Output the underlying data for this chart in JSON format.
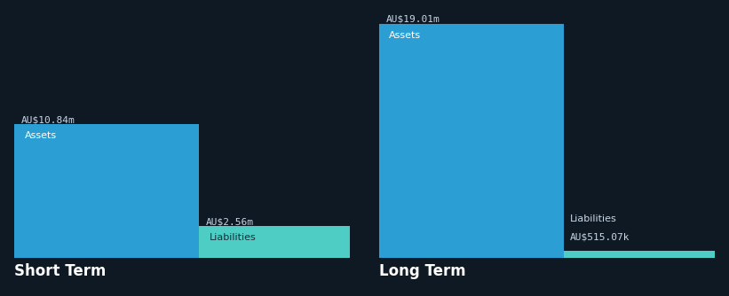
{
  "background_color": "#0f1923",
  "short_term": {
    "assets_value": 10.84,
    "assets_label": "AU$10.84m",
    "assets_color": "#2b9fd4",
    "liabilities_value": 2.56,
    "liabilities_label": "AU$2.56m",
    "liabilities_color": "#4ecdc4",
    "title": "Short Term"
  },
  "long_term": {
    "assets_value": 19.01,
    "assets_label": "AU$19.01m",
    "assets_color": "#2b9fd4",
    "liabilities_value": 0.51507,
    "liabilities_label": "AU$515.07k",
    "liabilities_color": "#4ecdc4",
    "title": "Long Term"
  },
  "assets_text": "Assets",
  "liabilities_text": "Liabilities",
  "label_color_assets": "#ffffff",
  "label_color_liabilities": "#1a2e3a",
  "value_label_color": "#c8d8e8",
  "title_color": "#ffffff",
  "title_fontsize": 12,
  "bar_label_fontsize": 8,
  "value_label_fontsize": 8
}
